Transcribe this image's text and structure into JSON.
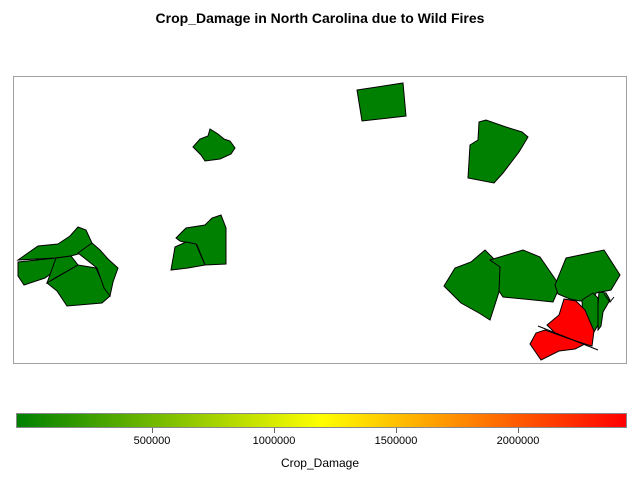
{
  "title": "Crop_Damage in North Carolina due to Wild Fires",
  "legend": {
    "title": "Crop_Damage",
    "ticks": [
      "500000",
      "1000000",
      "1500000",
      "2000000"
    ],
    "colors": [
      "#008000",
      "#ffff00",
      "#ff0000"
    ]
  },
  "map_data": {
    "variable": "Crop_Damage",
    "colors": {
      "low": "#008000",
      "high": "#ff0000"
    },
    "highlighted_county_value": "high"
  }
}
